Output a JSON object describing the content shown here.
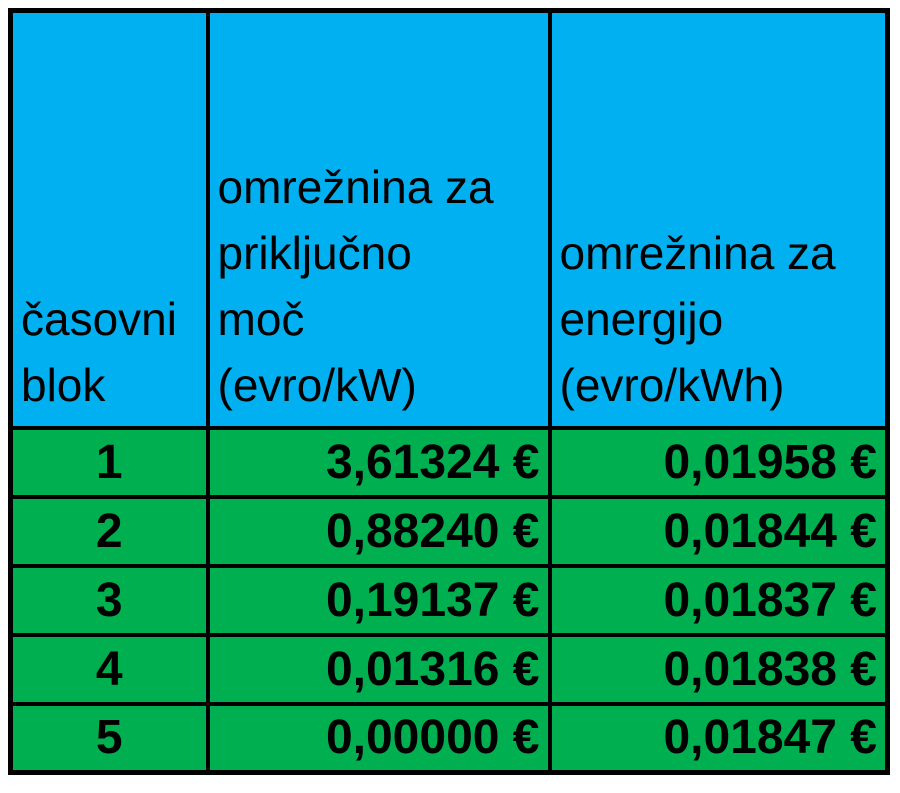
{
  "chart_data": {
    "type": "table",
    "columns": [
      {
        "label": "časovni blok",
        "lines": [
          "časovni",
          "blok"
        ]
      },
      {
        "label": "omrežnina za priključno moč (evro/kW)",
        "lines": [
          "omrežnina za",
          "priključno",
          "moč",
          "(evro/kW)"
        ]
      },
      {
        "label": "omrežnina za energijo (evro/kWh)",
        "lines": [
          "omrežnina za",
          "energijo",
          "(evro/kWh)"
        ]
      }
    ],
    "rows": [
      [
        "1",
        "3,61324 €",
        "0,01958 €"
      ],
      [
        "2",
        "0,88240 €",
        "0,01844 €"
      ],
      [
        "3",
        "0,19137 €",
        "0,01837 €"
      ],
      [
        "4",
        "0,01316 €",
        "0,01838 €"
      ],
      [
        "5",
        "0,00000 €",
        "0,01847 €"
      ]
    ],
    "layout": {
      "header_valign": "bottom",
      "blok_align": "center",
      "value_align": "right",
      "grid": "on"
    }
  },
  "colors": {
    "header_bg": "#00B0F0",
    "row_bg": "#00B050",
    "border": "#000000",
    "text": "#000000",
    "page_bg": "#FFFFFF"
  }
}
